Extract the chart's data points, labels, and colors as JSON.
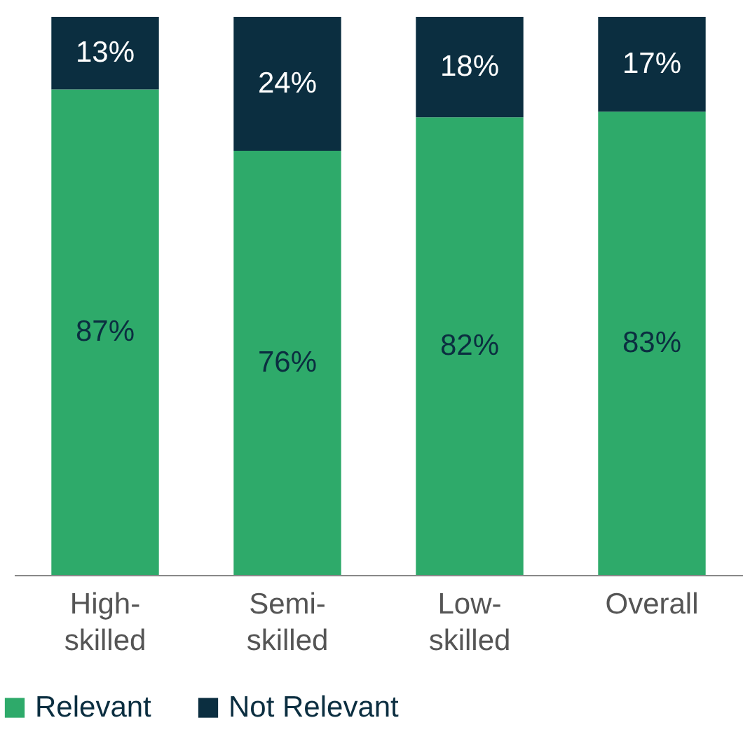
{
  "chart_data": {
    "type": "bar",
    "stacked": true,
    "categories": [
      "High-skilled",
      "Semi-skilled",
      "Low-skilled",
      "Overall"
    ],
    "series": [
      {
        "name": "Relevant",
        "color": "#2eaa6a",
        "values": [
          87,
          76,
          82,
          83
        ],
        "value_labels": [
          "87%",
          "76%",
          "82%",
          "83%"
        ]
      },
      {
        "name": "Not Relevant",
        "color": "#0b2e40",
        "values": [
          13,
          24,
          18,
          17
        ],
        "value_labels": [
          "13%",
          "24%",
          "18%",
          "17%"
        ]
      }
    ],
    "legend": "bottom left"
  }
}
